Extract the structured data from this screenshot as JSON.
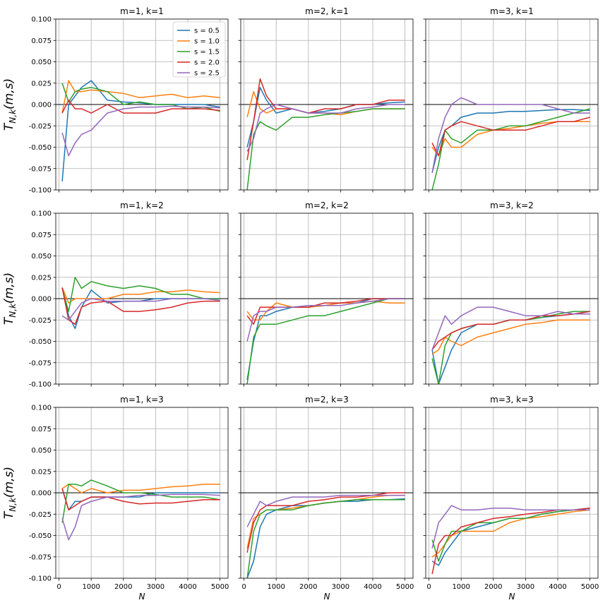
{
  "chart_data": {
    "type": "line",
    "grid": true,
    "xlim": [
      -100,
      5250
    ],
    "ylim": [
      -0.1,
      0.1
    ],
    "xticks": [
      0,
      1000,
      2000,
      3000,
      4000,
      5000
    ],
    "yticks": [
      -0.1,
      -0.075,
      -0.05,
      -0.025,
      0.0,
      0.025,
      0.05,
      0.075,
      0.1
    ],
    "ytick_labels": [
      "-0.100",
      "-0.075",
      "-0.050",
      "-0.025",
      "0.000",
      "0.025",
      "0.050",
      "0.075",
      "0.100"
    ],
    "xlabel": "N",
    "ylabel_html": "T<sub>N,k</sub>(m,s)",
    "ylabel_text": "T_{N,k}(m,s)",
    "series_meta": [
      {
        "name": "s = 0.5",
        "color": "#1f77b4"
      },
      {
        "name": "s = 1.0",
        "color": "#ff7f0e"
      },
      {
        "name": "s = 1.5",
        "color": "#2ca02c"
      },
      {
        "name": "s = 2.0",
        "color": "#d62728"
      },
      {
        "name": "s = 2.5",
        "color": "#9467bd"
      }
    ],
    "x": [
      100,
      300,
      500,
      700,
      1000,
      1500,
      2000,
      2500,
      3000,
      3500,
      4000,
      4500,
      5000
    ],
    "panels": [
      {
        "title": "m=1, k=1",
        "legend": "upper right",
        "series": [
          [
            -0.09,
            0.0,
            0.01,
            0.02,
            0.028,
            0.005,
            0.003,
            0.002,
            0.0,
            0.0,
            0.0,
            0.0,
            -0.003
          ],
          [
            -0.01,
            0.028,
            0.015,
            0.015,
            0.017,
            0.015,
            0.013,
            0.008,
            0.01,
            0.012,
            0.008,
            0.01,
            0.008
          ],
          [
            0.025,
            0.003,
            0.015,
            0.018,
            0.02,
            0.015,
            0.0,
            0.003,
            0.0,
            0.0,
            -0.005,
            -0.003,
            -0.008
          ],
          [
            -0.01,
            0.005,
            -0.005,
            -0.005,
            -0.01,
            0.0,
            -0.01,
            -0.01,
            -0.01,
            -0.005,
            -0.005,
            -0.005,
            -0.007
          ],
          [
            -0.033,
            -0.06,
            -0.045,
            -0.035,
            -0.03,
            -0.01,
            -0.005,
            -0.003,
            -0.003,
            -0.002,
            -0.003,
            -0.003,
            -0.004
          ]
        ]
      },
      {
        "title": "m=2, k=1",
        "series": [
          [
            -0.05,
            -0.02,
            0.02,
            0.005,
            -0.01,
            -0.005,
            -0.01,
            -0.008,
            -0.005,
            0.0,
            0.0,
            0.002,
            0.003
          ],
          [
            -0.015,
            0.015,
            -0.005,
            -0.01,
            -0.005,
            -0.005,
            -0.01,
            -0.01,
            -0.012,
            -0.008,
            -0.005,
            -0.005,
            -0.005
          ],
          [
            -0.1,
            -0.035,
            -0.02,
            -0.025,
            -0.03,
            -0.015,
            -0.015,
            -0.012,
            -0.01,
            -0.008,
            -0.005,
            -0.005,
            -0.005
          ],
          [
            -0.065,
            -0.02,
            0.03,
            0.01,
            -0.005,
            -0.005,
            -0.01,
            -0.005,
            -0.005,
            0.0,
            0.0,
            0.005,
            0.005
          ],
          [
            -0.055,
            -0.04,
            -0.01,
            -0.005,
            0.0,
            -0.005,
            -0.01,
            -0.01,
            -0.01,
            -0.005,
            -0.003,
            0.0,
            0.0
          ]
        ]
      },
      {
        "title": "m=3, k=1",
        "series": [
          [
            -0.08,
            -0.05,
            -0.03,
            -0.025,
            -0.015,
            -0.01,
            -0.01,
            -0.008,
            -0.008,
            -0.007,
            -0.006,
            -0.006,
            -0.007
          ],
          [
            -0.05,
            -0.06,
            -0.04,
            -0.05,
            -0.05,
            -0.035,
            -0.03,
            -0.028,
            -0.025,
            -0.022,
            -0.02,
            -0.02,
            -0.02
          ],
          [
            -0.1,
            -0.07,
            -0.03,
            -0.04,
            -0.045,
            -0.03,
            -0.03,
            -0.025,
            -0.025,
            -0.02,
            -0.015,
            -0.01,
            -0.005
          ],
          [
            -0.045,
            -0.06,
            -0.03,
            -0.025,
            -0.02,
            -0.025,
            -0.03,
            -0.03,
            -0.03,
            -0.025,
            -0.02,
            -0.02,
            -0.015
          ],
          [
            -0.08,
            -0.04,
            -0.015,
            0.0,
            0.008,
            0.0,
            0.0,
            0.0,
            0.0,
            0.0,
            -0.005,
            -0.01,
            -0.01
          ]
        ]
      },
      {
        "title": "m=1, k=2",
        "series": [
          [
            0.013,
            -0.02,
            -0.035,
            -0.01,
            0.01,
            -0.005,
            -0.003,
            -0.003,
            0.0,
            0.0,
            0.0,
            0.0,
            0.0
          ],
          [
            0.013,
            -0.005,
            0.0,
            0.0,
            0.0,
            0.0,
            0.005,
            0.005,
            0.008,
            0.008,
            0.01,
            0.008,
            0.007
          ],
          [
            0.012,
            -0.015,
            0.025,
            0.012,
            0.02,
            0.015,
            0.012,
            0.015,
            0.012,
            0.005,
            0.005,
            0.0,
            0.0
          ],
          [
            0.013,
            -0.025,
            -0.03,
            -0.01,
            -0.005,
            -0.003,
            -0.015,
            -0.015,
            -0.013,
            -0.01,
            -0.005,
            -0.003,
            -0.003
          ],
          [
            -0.02,
            -0.025,
            -0.015,
            -0.005,
            0.0,
            -0.003,
            -0.003,
            -0.003,
            -0.003,
            0.0,
            0.0,
            0.0,
            -0.002
          ]
        ]
      },
      {
        "title": "m=2, k=2",
        "series": [
          [
            -0.095,
            -0.05,
            -0.02,
            -0.02,
            -0.015,
            -0.01,
            -0.01,
            -0.008,
            -0.005,
            -0.005,
            0.0,
            0.0,
            0.0
          ],
          [
            -0.015,
            -0.025,
            -0.025,
            -0.015,
            -0.005,
            -0.01,
            -0.01,
            -0.008,
            -0.005,
            -0.005,
            -0.003,
            -0.005,
            -0.005
          ],
          [
            -0.1,
            -0.045,
            -0.03,
            -0.03,
            -0.03,
            -0.025,
            -0.02,
            -0.02,
            -0.015,
            -0.01,
            -0.005,
            0.0,
            0.0
          ],
          [
            -0.02,
            -0.03,
            -0.01,
            -0.01,
            -0.01,
            -0.01,
            -0.01,
            -0.005,
            -0.005,
            -0.003,
            0.0,
            0.0,
            0.0
          ],
          [
            -0.05,
            -0.02,
            -0.015,
            -0.015,
            -0.01,
            -0.01,
            -0.008,
            -0.008,
            -0.008,
            -0.005,
            -0.003,
            0.0,
            0.0
          ]
        ]
      },
      {
        "title": "m=3, k=2",
        "series": [
          [
            -0.06,
            -0.1,
            -0.08,
            -0.06,
            -0.04,
            -0.03,
            -0.03,
            -0.025,
            -0.025,
            -0.022,
            -0.02,
            -0.018,
            -0.015
          ],
          [
            -0.065,
            -0.06,
            -0.045,
            -0.05,
            -0.055,
            -0.045,
            -0.04,
            -0.035,
            -0.03,
            -0.028,
            -0.025,
            -0.025,
            -0.025
          ],
          [
            -0.07,
            -0.1,
            -0.055,
            -0.04,
            -0.035,
            -0.03,
            -0.03,
            -0.025,
            -0.025,
            -0.022,
            -0.018,
            -0.015,
            -0.015
          ],
          [
            -0.06,
            -0.05,
            -0.045,
            -0.04,
            -0.035,
            -0.03,
            -0.03,
            -0.025,
            -0.025,
            -0.02,
            -0.02,
            -0.018,
            -0.015
          ],
          [
            -0.06,
            -0.04,
            -0.02,
            -0.03,
            -0.02,
            -0.01,
            -0.01,
            -0.015,
            -0.02,
            -0.02,
            -0.015,
            -0.018,
            -0.018
          ]
        ]
      },
      {
        "title": "m=1, k=3",
        "series": [
          [
            0.005,
            -0.02,
            -0.01,
            -0.01,
            -0.005,
            -0.005,
            -0.005,
            -0.005,
            0.0,
            0.0,
            0.0,
            0.0,
            0.0
          ],
          [
            0.005,
            0.01,
            0.005,
            0.0,
            0.005,
            0.0,
            0.003,
            0.003,
            0.005,
            0.007,
            0.008,
            0.01,
            0.01
          ],
          [
            -0.035,
            0.01,
            0.01,
            0.008,
            0.015,
            0.008,
            0.0,
            0.0,
            -0.002,
            -0.005,
            -0.005,
            -0.005,
            -0.008
          ],
          [
            0.005,
            -0.02,
            -0.015,
            -0.01,
            -0.005,
            -0.005,
            -0.01,
            -0.013,
            -0.012,
            -0.012,
            -0.01,
            -0.008,
            -0.008
          ],
          [
            -0.03,
            -0.055,
            -0.04,
            -0.015,
            -0.01,
            -0.005,
            -0.005,
            -0.003,
            -0.003,
            -0.002,
            -0.002,
            -0.002,
            -0.003
          ]
        ]
      },
      {
        "title": "m=2, k=3",
        "series": [
          [
            -0.1,
            -0.08,
            -0.04,
            -0.025,
            -0.02,
            -0.015,
            -0.015,
            -0.012,
            -0.01,
            -0.01,
            -0.008,
            -0.008,
            -0.007
          ],
          [
            -0.065,
            -0.03,
            -0.025,
            -0.02,
            -0.02,
            -0.018,
            -0.015,
            -0.012,
            -0.01,
            -0.008,
            -0.005,
            -0.003,
            -0.003
          ],
          [
            -0.1,
            -0.045,
            -0.025,
            -0.02,
            -0.02,
            -0.02,
            -0.015,
            -0.012,
            -0.01,
            -0.008,
            -0.008,
            -0.008,
            -0.008
          ],
          [
            -0.07,
            -0.035,
            -0.02,
            -0.015,
            -0.015,
            -0.015,
            -0.01,
            -0.008,
            -0.005,
            -0.005,
            -0.003,
            0.0,
            0.0
          ],
          [
            -0.04,
            -0.025,
            -0.01,
            -0.015,
            -0.01,
            -0.005,
            -0.005,
            -0.005,
            -0.003,
            -0.003,
            -0.003,
            -0.003,
            -0.003
          ]
        ]
      },
      {
        "title": "m=3, k=3",
        "series": [
          [
            -0.08,
            -0.085,
            -0.07,
            -0.06,
            -0.045,
            -0.04,
            -0.035,
            -0.03,
            -0.03,
            -0.025,
            -0.022,
            -0.02,
            -0.018
          ],
          [
            -0.075,
            -0.07,
            -0.06,
            -0.05,
            -0.045,
            -0.045,
            -0.045,
            -0.035,
            -0.03,
            -0.028,
            -0.025,
            -0.022,
            -0.02
          ],
          [
            -0.055,
            -0.08,
            -0.06,
            -0.045,
            -0.045,
            -0.035,
            -0.035,
            -0.03,
            -0.03,
            -0.025,
            -0.022,
            -0.02,
            -0.018
          ],
          [
            -0.095,
            -0.06,
            -0.05,
            -0.05,
            -0.04,
            -0.035,
            -0.03,
            -0.028,
            -0.025,
            -0.023,
            -0.02,
            -0.02,
            -0.018
          ],
          [
            -0.065,
            -0.035,
            -0.025,
            -0.015,
            -0.02,
            -0.02,
            -0.018,
            -0.018,
            -0.02,
            -0.02,
            -0.02,
            -0.02,
            -0.02
          ]
        ]
      }
    ]
  }
}
